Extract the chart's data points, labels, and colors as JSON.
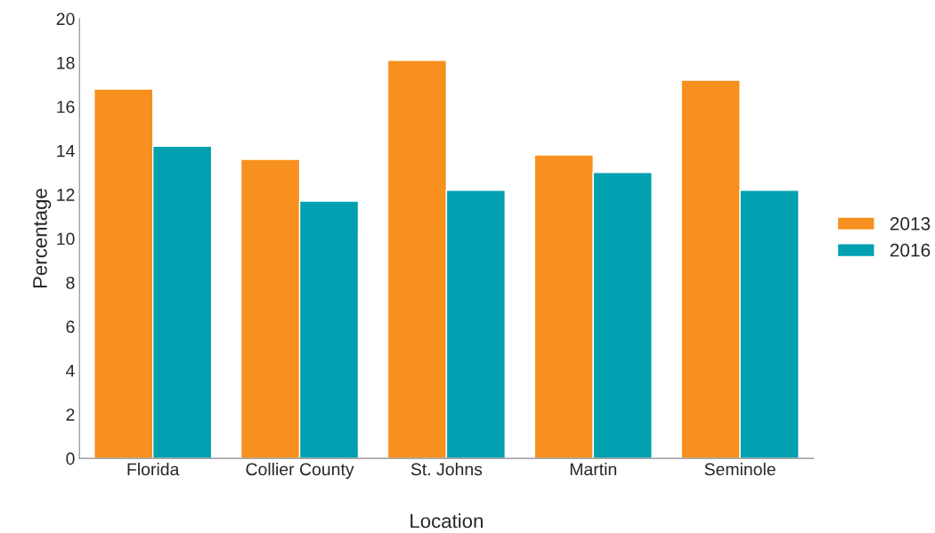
{
  "chart_data": {
    "type": "bar",
    "xlabel": "Location",
    "ylabel": "Percentage",
    "categories": [
      "Florida",
      "Collier County",
      "St. Johns",
      "Martin",
      "Seminole"
    ],
    "series": [
      {
        "name": "2013",
        "color": "#f7901e",
        "values": [
          16.8,
          13.6,
          18.1,
          13.8,
          17.2
        ]
      },
      {
        "name": "2016",
        "color": "#00a0b0",
        "values": [
          14.2,
          11.7,
          12.2,
          13.0,
          12.2
        ]
      }
    ],
    "ylim": [
      0,
      20
    ],
    "yticks": [
      0,
      2,
      4,
      6,
      8,
      10,
      12,
      14,
      16,
      18,
      20
    ],
    "grid": false,
    "legend": "right"
  }
}
